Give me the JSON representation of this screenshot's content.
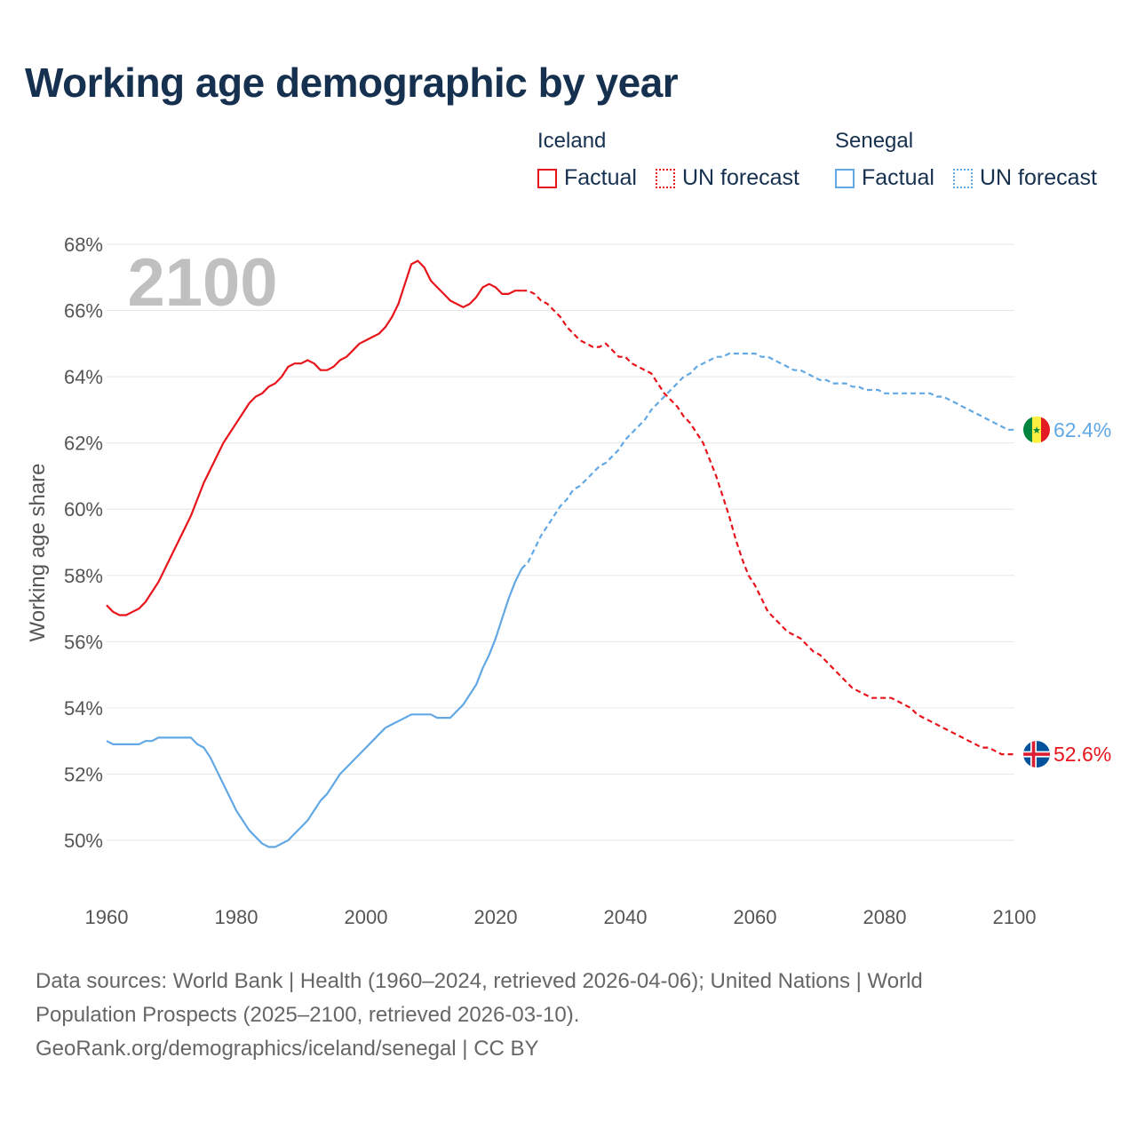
{
  "title": "Working age demographic by year",
  "legend": {
    "groups": [
      {
        "name": "Iceland",
        "color": "#e8141b",
        "factual": "Factual",
        "forecast": "UN forecast"
      },
      {
        "name": "Senegal",
        "color": "#62a8e5",
        "factual": "Factual",
        "forecast": "UN forecast"
      }
    ]
  },
  "year_watermark": "2100",
  "chart_data": {
    "type": "line",
    "title": "Working age demographic by year",
    "xlabel": "",
    "ylabel": "Working age share",
    "xlim": [
      1960,
      2100
    ],
    "ylim": [
      49,
      68.5
    ],
    "x_ticks": [
      1960,
      1980,
      2000,
      2020,
      2040,
      2060,
      2080,
      2100
    ],
    "y_ticks": [
      50,
      52,
      54,
      56,
      58,
      60,
      62,
      64,
      66,
      68
    ],
    "y_tick_labels": [
      "50%",
      "52%",
      "54%",
      "56%",
      "58%",
      "60%",
      "62%",
      "64%",
      "66%",
      "68%"
    ],
    "factual_end_year": 2024,
    "series": [
      {
        "name": "Iceland",
        "color": "#e8141b",
        "end_label": "52.6%",
        "points": [
          [
            1960,
            57.1
          ],
          [
            1961,
            56.9
          ],
          [
            1962,
            56.8
          ],
          [
            1963,
            56.8
          ],
          [
            1964,
            56.9
          ],
          [
            1965,
            57.0
          ],
          [
            1966,
            57.2
          ],
          [
            1967,
            57.5
          ],
          [
            1968,
            57.8
          ],
          [
            1969,
            58.2
          ],
          [
            1970,
            58.6
          ],
          [
            1971,
            59.0
          ],
          [
            1972,
            59.4
          ],
          [
            1973,
            59.8
          ],
          [
            1974,
            60.3
          ],
          [
            1975,
            60.8
          ],
          [
            1976,
            61.2
          ],
          [
            1977,
            61.6
          ],
          [
            1978,
            62.0
          ],
          [
            1979,
            62.3
          ],
          [
            1980,
            62.6
          ],
          [
            1981,
            62.9
          ],
          [
            1982,
            63.2
          ],
          [
            1983,
            63.4
          ],
          [
            1984,
            63.5
          ],
          [
            1985,
            63.7
          ],
          [
            1986,
            63.8
          ],
          [
            1987,
            64.0
          ],
          [
            1988,
            64.3
          ],
          [
            1989,
            64.4
          ],
          [
            1990,
            64.4
          ],
          [
            1991,
            64.5
          ],
          [
            1992,
            64.4
          ],
          [
            1993,
            64.2
          ],
          [
            1994,
            64.2
          ],
          [
            1995,
            64.3
          ],
          [
            1996,
            64.5
          ],
          [
            1997,
            64.6
          ],
          [
            1998,
            64.8
          ],
          [
            1999,
            65.0
          ],
          [
            2000,
            65.1
          ],
          [
            2001,
            65.2
          ],
          [
            2002,
            65.3
          ],
          [
            2003,
            65.5
          ],
          [
            2004,
            65.8
          ],
          [
            2005,
            66.2
          ],
          [
            2006,
            66.8
          ],
          [
            2007,
            67.4
          ],
          [
            2008,
            67.5
          ],
          [
            2009,
            67.3
          ],
          [
            2010,
            66.9
          ],
          [
            2011,
            66.7
          ],
          [
            2012,
            66.5
          ],
          [
            2013,
            66.3
          ],
          [
            2014,
            66.2
          ],
          [
            2015,
            66.1
          ],
          [
            2016,
            66.2
          ],
          [
            2017,
            66.4
          ],
          [
            2018,
            66.7
          ],
          [
            2019,
            66.8
          ],
          [
            2020,
            66.7
          ],
          [
            2021,
            66.5
          ],
          [
            2022,
            66.5
          ],
          [
            2023,
            66.6
          ],
          [
            2024,
            66.6
          ],
          [
            2025,
            66.6
          ],
          [
            2026,
            66.5
          ],
          [
            2027,
            66.3
          ],
          [
            2028,
            66.2
          ],
          [
            2029,
            66.0
          ],
          [
            2030,
            65.8
          ],
          [
            2031,
            65.5
          ],
          [
            2032,
            65.3
          ],
          [
            2033,
            65.1
          ],
          [
            2034,
            65.0
          ],
          [
            2035,
            64.9
          ],
          [
            2036,
            64.9
          ],
          [
            2037,
            65.0
          ],
          [
            2038,
            64.8
          ],
          [
            2039,
            64.6
          ],
          [
            2040,
            64.6
          ],
          [
            2041,
            64.4
          ],
          [
            2042,
            64.3
          ],
          [
            2043,
            64.2
          ],
          [
            2044,
            64.1
          ],
          [
            2045,
            63.8
          ],
          [
            2046,
            63.5
          ],
          [
            2047,
            63.3
          ],
          [
            2048,
            63.1
          ],
          [
            2049,
            62.8
          ],
          [
            2050,
            62.6
          ],
          [
            2051,
            62.3
          ],
          [
            2052,
            62.0
          ],
          [
            2053,
            61.5
          ],
          [
            2054,
            61.0
          ],
          [
            2055,
            60.4
          ],
          [
            2056,
            59.8
          ],
          [
            2057,
            59.1
          ],
          [
            2058,
            58.5
          ],
          [
            2059,
            58.0
          ],
          [
            2060,
            57.7
          ],
          [
            2061,
            57.3
          ],
          [
            2062,
            56.9
          ],
          [
            2063,
            56.7
          ],
          [
            2064,
            56.5
          ],
          [
            2065,
            56.3
          ],
          [
            2066,
            56.2
          ],
          [
            2067,
            56.1
          ],
          [
            2068,
            55.9
          ],
          [
            2069,
            55.7
          ],
          [
            2070,
            55.6
          ],
          [
            2071,
            55.4
          ],
          [
            2072,
            55.2
          ],
          [
            2073,
            55.0
          ],
          [
            2074,
            54.8
          ],
          [
            2075,
            54.6
          ],
          [
            2076,
            54.5
          ],
          [
            2077,
            54.4
          ],
          [
            2078,
            54.3
          ],
          [
            2079,
            54.3
          ],
          [
            2080,
            54.3
          ],
          [
            2081,
            54.3
          ],
          [
            2082,
            54.2
          ],
          [
            2083,
            54.1
          ],
          [
            2084,
            54.0
          ],
          [
            2085,
            53.8
          ],
          [
            2086,
            53.7
          ],
          [
            2087,
            53.6
          ],
          [
            2088,
            53.5
          ],
          [
            2089,
            53.4
          ],
          [
            2090,
            53.3
          ],
          [
            2091,
            53.2
          ],
          [
            2092,
            53.1
          ],
          [
            2093,
            53.0
          ],
          [
            2094,
            52.9
          ],
          [
            2095,
            52.8
          ],
          [
            2096,
            52.8
          ],
          [
            2097,
            52.7
          ],
          [
            2098,
            52.6
          ],
          [
            2099,
            52.6
          ],
          [
            2100,
            52.6
          ]
        ]
      },
      {
        "name": "Senegal",
        "color": "#62a8e5",
        "end_label": "62.4%",
        "points": [
          [
            1960,
            53.0
          ],
          [
            1961,
            52.9
          ],
          [
            1962,
            52.9
          ],
          [
            1963,
            52.9
          ],
          [
            1964,
            52.9
          ],
          [
            1965,
            52.9
          ],
          [
            1966,
            53.0
          ],
          [
            1967,
            53.0
          ],
          [
            1968,
            53.1
          ],
          [
            1969,
            53.1
          ],
          [
            1970,
            53.1
          ],
          [
            1971,
            53.1
          ],
          [
            1972,
            53.1
          ],
          [
            1973,
            53.1
          ],
          [
            1974,
            52.9
          ],
          [
            1975,
            52.8
          ],
          [
            1976,
            52.5
          ],
          [
            1977,
            52.1
          ],
          [
            1978,
            51.7
          ],
          [
            1979,
            51.3
          ],
          [
            1980,
            50.9
          ],
          [
            1981,
            50.6
          ],
          [
            1982,
            50.3
          ],
          [
            1983,
            50.1
          ],
          [
            1984,
            49.9
          ],
          [
            1985,
            49.8
          ],
          [
            1986,
            49.8
          ],
          [
            1987,
            49.9
          ],
          [
            1988,
            50.0
          ],
          [
            1989,
            50.2
          ],
          [
            1990,
            50.4
          ],
          [
            1991,
            50.6
          ],
          [
            1992,
            50.9
          ],
          [
            1993,
            51.2
          ],
          [
            1994,
            51.4
          ],
          [
            1995,
            51.7
          ],
          [
            1996,
            52.0
          ],
          [
            1997,
            52.2
          ],
          [
            1998,
            52.4
          ],
          [
            1999,
            52.6
          ],
          [
            2000,
            52.8
          ],
          [
            2001,
            53.0
          ],
          [
            2002,
            53.2
          ],
          [
            2003,
            53.4
          ],
          [
            2004,
            53.5
          ],
          [
            2005,
            53.6
          ],
          [
            2006,
            53.7
          ],
          [
            2007,
            53.8
          ],
          [
            2008,
            53.8
          ],
          [
            2009,
            53.8
          ],
          [
            2010,
            53.8
          ],
          [
            2011,
            53.7
          ],
          [
            2012,
            53.7
          ],
          [
            2013,
            53.7
          ],
          [
            2014,
            53.9
          ],
          [
            2015,
            54.1
          ],
          [
            2016,
            54.4
          ],
          [
            2017,
            54.7
          ],
          [
            2018,
            55.2
          ],
          [
            2019,
            55.6
          ],
          [
            2020,
            56.1
          ],
          [
            2021,
            56.7
          ],
          [
            2022,
            57.3
          ],
          [
            2023,
            57.8
          ],
          [
            2024,
            58.2
          ],
          [
            2025,
            58.4
          ],
          [
            2026,
            58.8
          ],
          [
            2027,
            59.2
          ],
          [
            2028,
            59.5
          ],
          [
            2029,
            59.8
          ],
          [
            2030,
            60.1
          ],
          [
            2031,
            60.3
          ],
          [
            2032,
            60.6
          ],
          [
            2033,
            60.7
          ],
          [
            2034,
            60.9
          ],
          [
            2035,
            61.1
          ],
          [
            2036,
            61.3
          ],
          [
            2037,
            61.4
          ],
          [
            2038,
            61.6
          ],
          [
            2039,
            61.8
          ],
          [
            2040,
            62.1
          ],
          [
            2041,
            62.3
          ],
          [
            2042,
            62.5
          ],
          [
            2043,
            62.7
          ],
          [
            2044,
            63.0
          ],
          [
            2045,
            63.2
          ],
          [
            2046,
            63.4
          ],
          [
            2047,
            63.6
          ],
          [
            2048,
            63.8
          ],
          [
            2049,
            64.0
          ],
          [
            2050,
            64.1
          ],
          [
            2051,
            64.3
          ],
          [
            2052,
            64.4
          ],
          [
            2053,
            64.5
          ],
          [
            2054,
            64.6
          ],
          [
            2055,
            64.6
          ],
          [
            2056,
            64.7
          ],
          [
            2057,
            64.7
          ],
          [
            2058,
            64.7
          ],
          [
            2059,
            64.7
          ],
          [
            2060,
            64.7
          ],
          [
            2061,
            64.6
          ],
          [
            2062,
            64.6
          ],
          [
            2063,
            64.5
          ],
          [
            2064,
            64.4
          ],
          [
            2065,
            64.3
          ],
          [
            2066,
            64.2
          ],
          [
            2067,
            64.2
          ],
          [
            2068,
            64.1
          ],
          [
            2069,
            64.0
          ],
          [
            2070,
            63.9
          ],
          [
            2071,
            63.9
          ],
          [
            2072,
            63.8
          ],
          [
            2073,
            63.8
          ],
          [
            2074,
            63.8
          ],
          [
            2075,
            63.7
          ],
          [
            2076,
            63.7
          ],
          [
            2077,
            63.6
          ],
          [
            2078,
            63.6
          ],
          [
            2079,
            63.6
          ],
          [
            2080,
            63.5
          ],
          [
            2081,
            63.5
          ],
          [
            2082,
            63.5
          ],
          [
            2083,
            63.5
          ],
          [
            2084,
            63.5
          ],
          [
            2085,
            63.5
          ],
          [
            2086,
            63.5
          ],
          [
            2087,
            63.5
          ],
          [
            2088,
            63.4
          ],
          [
            2089,
            63.4
          ],
          [
            2090,
            63.3
          ],
          [
            2091,
            63.2
          ],
          [
            2092,
            63.1
          ],
          [
            2093,
            63.0
          ],
          [
            2094,
            62.9
          ],
          [
            2095,
            62.8
          ],
          [
            2096,
            62.7
          ],
          [
            2097,
            62.6
          ],
          [
            2098,
            62.5
          ],
          [
            2099,
            62.4
          ],
          [
            2100,
            62.4
          ]
        ]
      }
    ]
  },
  "footer": {
    "line1": "Data sources: World Bank | Health (1960–2024, retrieved 2026-04-06); United Nations | World",
    "line2": "Population Prospects (2025–2100, retrieved 2026-03-10).",
    "line3": "GeoRank.org/demographics/iceland/senegal | CC BY"
  }
}
